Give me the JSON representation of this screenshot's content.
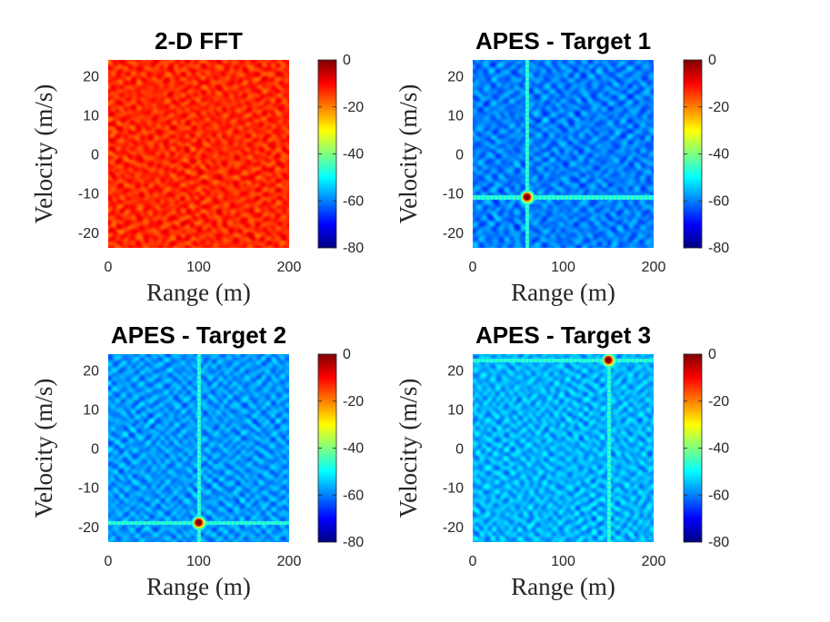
{
  "colormap": {
    "name": "jet",
    "stops": [
      "#00007f",
      "#0000ff",
      "#007fff",
      "#00ffff",
      "#7fff7f",
      "#ffff00",
      "#ff7f00",
      "#ff0000",
      "#7f0000"
    ]
  },
  "chart_data": [
    {
      "type": "heatmap",
      "title": "2-D FFT",
      "xlabel": "Range (m)",
      "ylabel": "Velocity (m/s)",
      "xlim": [
        0,
        200
      ],
      "ylim": [
        -24,
        24
      ],
      "xticks": [
        0,
        100,
        200
      ],
      "yticks": [
        20,
        10,
        0,
        -10,
        -20
      ],
      "clim": [
        -80,
        0
      ],
      "colorbar_ticks": [
        0,
        -20,
        -40,
        -60,
        -80
      ],
      "background_level_db": -12,
      "targets": []
    },
    {
      "type": "heatmap",
      "title": "APES - Target 1",
      "xlabel": "Range (m)",
      "ylabel": "Velocity (m/s)",
      "xlim": [
        0,
        200
      ],
      "ylim": [
        -24,
        24
      ],
      "xticks": [
        0,
        100,
        200
      ],
      "yticks": [
        20,
        10,
        0,
        -10,
        -20
      ],
      "clim": [
        -80,
        0
      ],
      "colorbar_ticks": [
        0,
        -20,
        -40,
        -60,
        -80
      ],
      "background_level_db": -60,
      "targets": [
        {
          "range_m": 60,
          "velocity_mps": -11,
          "level_db": 0
        }
      ]
    },
    {
      "type": "heatmap",
      "title": "APES - Target 2",
      "xlabel": "Range (m)",
      "ylabel": "Velocity (m/s)",
      "xlim": [
        0,
        200
      ],
      "ylim": [
        -24,
        24
      ],
      "xticks": [
        0,
        100,
        200
      ],
      "yticks": [
        20,
        10,
        0,
        -10,
        -20
      ],
      "clim": [
        -80,
        0
      ],
      "colorbar_ticks": [
        0,
        -20,
        -40,
        -60,
        -80
      ],
      "background_level_db": -58,
      "targets": [
        {
          "range_m": 100,
          "velocity_mps": -19,
          "level_db": 0
        }
      ]
    },
    {
      "type": "heatmap",
      "title": "APES - Target 3",
      "xlabel": "Range (m)",
      "ylabel": "Velocity (m/s)",
      "xlim": [
        0,
        200
      ],
      "ylim": [
        -24,
        24
      ],
      "xticks": [
        0,
        100,
        200
      ],
      "yticks": [
        20,
        10,
        0,
        -10,
        -20
      ],
      "clim": [
        -80,
        0
      ],
      "colorbar_ticks": [
        0,
        -20,
        -40,
        -60,
        -80
      ],
      "background_level_db": -56,
      "targets": [
        {
          "range_m": 150,
          "velocity_mps": 22.5,
          "level_db": 0
        }
      ]
    }
  ]
}
